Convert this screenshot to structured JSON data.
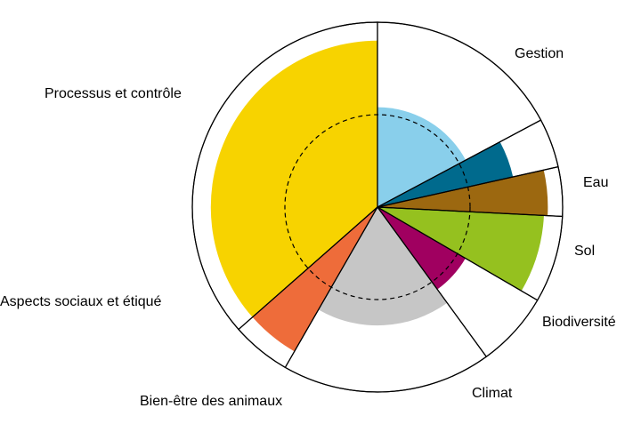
{
  "chart_data": {
    "type": "polar-area",
    "title": "",
    "rmax": 1.0,
    "reference_ring": 0.5,
    "reference_ring_style": "dashed",
    "outer_ring": true,
    "categories": [
      {
        "label": "Gestion",
        "share": 0.172,
        "value": 0.54,
        "color": "#89CFEB"
      },
      {
        "label": "Eau",
        "share": 0.043,
        "value": 0.75,
        "color": "#006A8D"
      },
      {
        "label": "Sol",
        "share": 0.043,
        "value": 0.92,
        "color": "#9C6810"
      },
      {
        "label": "Biodiversité",
        "share": 0.076,
        "value": 0.9,
        "color": "#95C11F"
      },
      {
        "label": "Climat",
        "share": 0.066,
        "value": 0.55,
        "color": "#A00060"
      },
      {
        "label": "Bien-être des animaux",
        "share": 0.183,
        "value": 0.64,
        "color": "#C6C6C6"
      },
      {
        "label": "Aspects sociaux et étiqué",
        "share": 0.052,
        "value": 0.9,
        "color": "#EE6C3A"
      },
      {
        "label": "Processus et contrôle",
        "share": 0.365,
        "value": 0.9,
        "color": "#F7D300"
      }
    ]
  }
}
